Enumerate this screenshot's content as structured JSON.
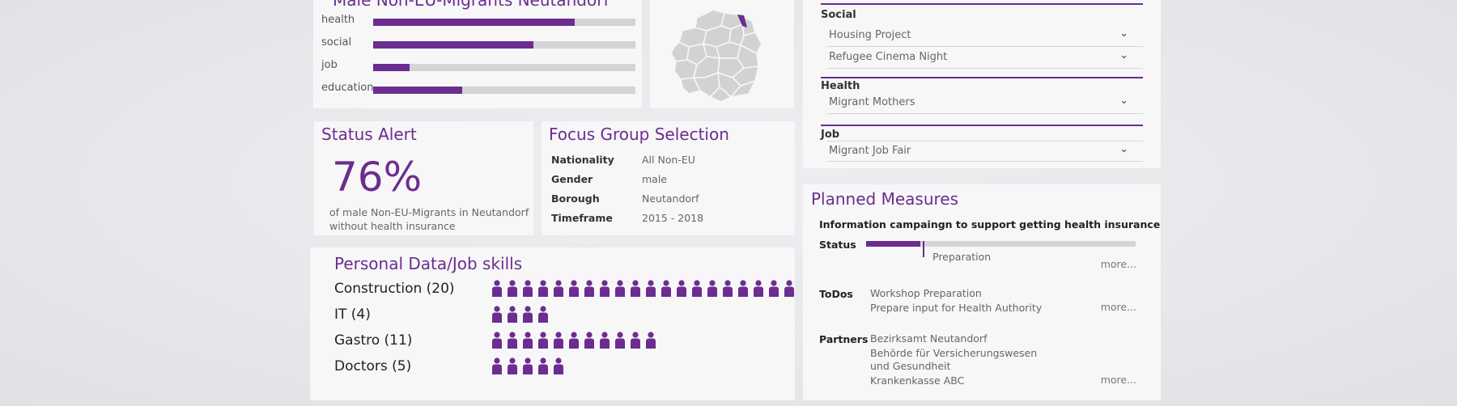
{
  "male_panel": {
    "title": "Male Non-EU-Migrants Neutandorf",
    "bars": [
      {
        "label": "health",
        "value": 0.77
      },
      {
        "label": "social",
        "value": 0.61
      },
      {
        "label": "job",
        "value": 0.14
      },
      {
        "label": "education",
        "value": 0.34
      }
    ]
  },
  "categories": {
    "social": {
      "label": "Social",
      "items": [
        "Housing Project",
        "Refugee Cinema Night"
      ]
    },
    "health": {
      "label": "Health",
      "items": [
        "Migrant Mothers"
      ]
    },
    "job": {
      "label": "Job",
      "items": [
        "Migrant Job Fair"
      ]
    }
  },
  "status_alert": {
    "title": "Status Alert",
    "value": "76%",
    "desc_line1": "of male Non-EU-Migrants in Neutandorf",
    "desc_line2": "without health insurance"
  },
  "focus_group": {
    "title": "Focus Group Selection",
    "rows": [
      {
        "key": "Nationality",
        "value": "All Non-EU"
      },
      {
        "key": "Gender",
        "value": "male"
      },
      {
        "key": "Borough",
        "value": "Neutandorf"
      },
      {
        "key": "Timeframe",
        "value": "2015 - 2018"
      }
    ]
  },
  "personal_data": {
    "title": "Personal Data/Job skills",
    "skills": [
      {
        "label": "Construction (20)",
        "count": 20
      },
      {
        "label": "IT (4)",
        "count": 4
      },
      {
        "label": "Gastro (11)",
        "count": 11
      },
      {
        "label": "Doctors (5)",
        "count": 5
      }
    ]
  },
  "planned_measures": {
    "title": "Planned Measures",
    "subtitle": "Information campaingn to support getting health insurance",
    "status_label": "Status",
    "status_value": 0.2,
    "status_text": "Preparation",
    "todos_label": "ToDos",
    "todos": [
      "Workshop Preparation",
      "Prepare input for Health Authority"
    ],
    "partners_label": "Partners",
    "partners": [
      "Bezirksamt Neutandorf",
      "Behörde für Versicherungswesen",
      "und Gesundheit",
      "Krankenkasse ABC"
    ],
    "more": "more..."
  },
  "colors": {
    "accent": "#6b2d8f",
    "track": "#d4d4d6"
  },
  "icons": {
    "chevron": "chevron-down-icon",
    "person": "person-icon",
    "map": "borough-map"
  }
}
